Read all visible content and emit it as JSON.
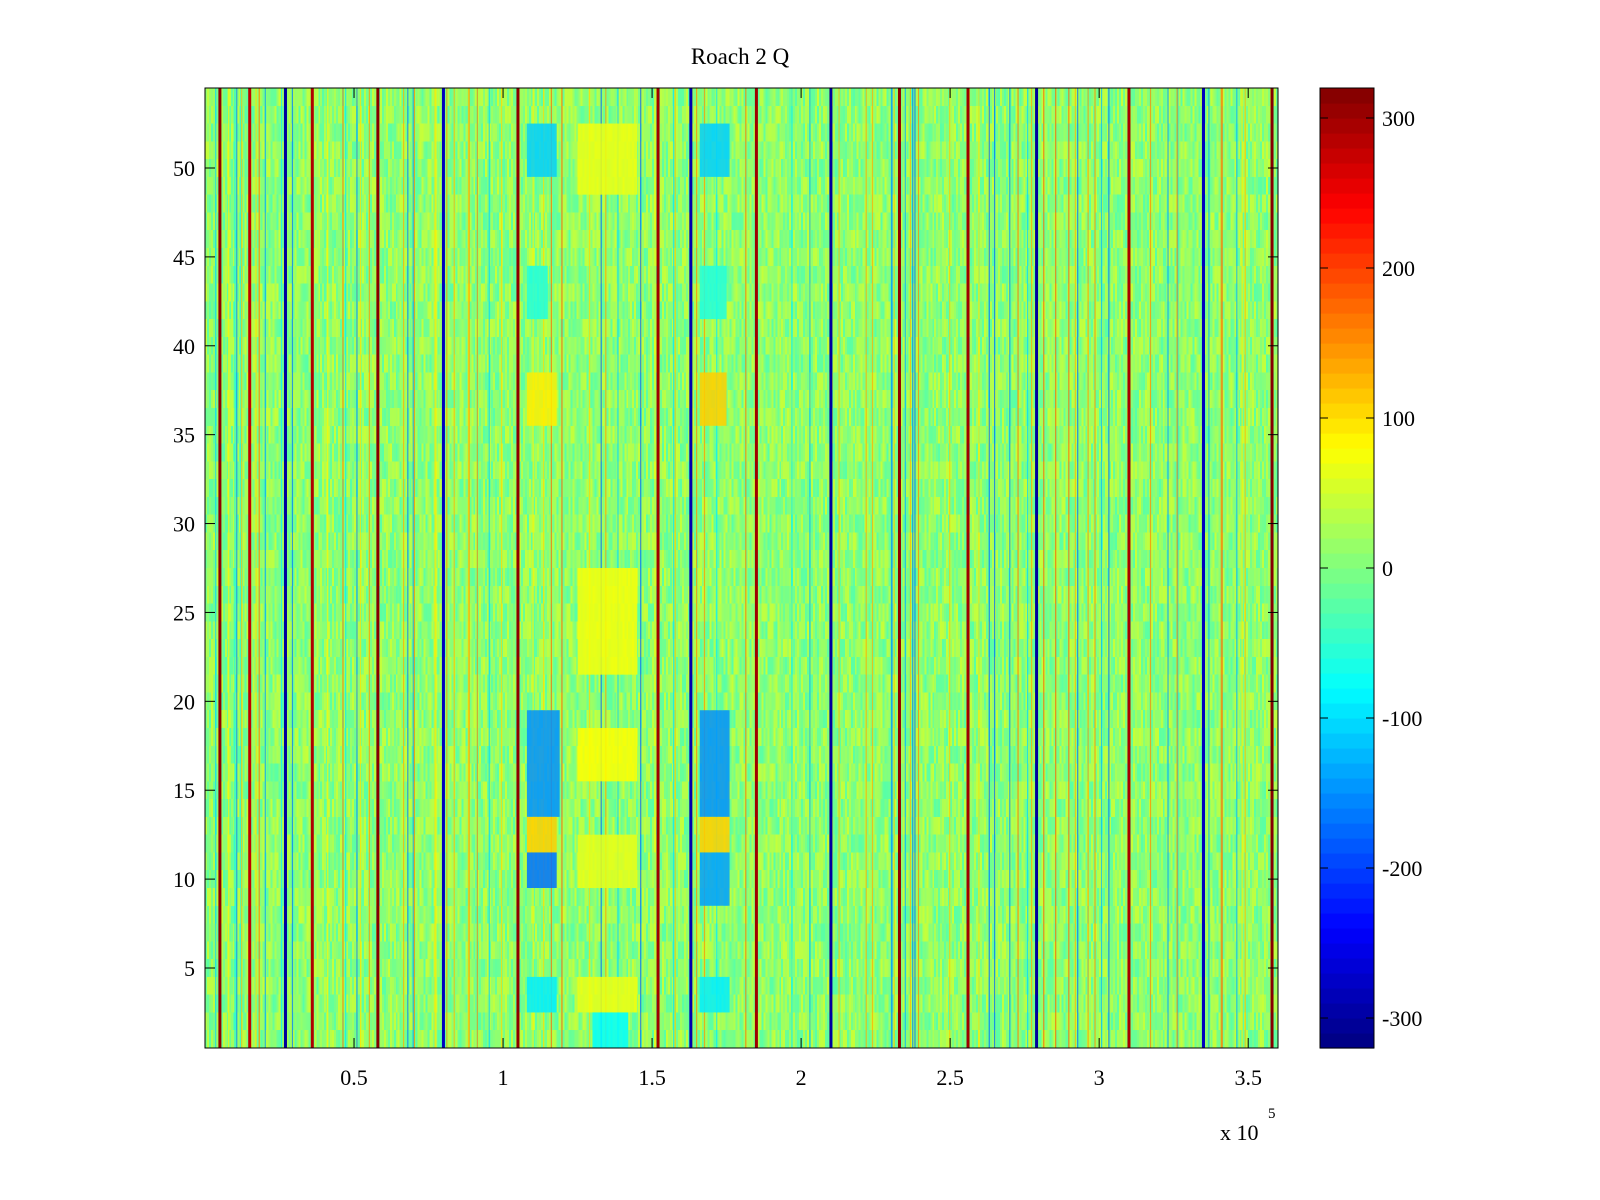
{
  "figure_title": "Roach 2 Q",
  "chart_data": [
    {
      "type": "heatmap",
      "title": "Roach 2 Q",
      "xlabel": "",
      "ylabel": "",
      "x_range": [
        0,
        360000
      ],
      "y_range": [
        0.5,
        54.5
      ],
      "x_multiplier_base": "x 10",
      "x_multiplier_exponent": "5",
      "x_ticks": [
        {
          "value": 50000,
          "label": "0.5"
        },
        {
          "value": 100000,
          "label": "1"
        },
        {
          "value": 150000,
          "label": "1.5"
        },
        {
          "value": 200000,
          "label": "2"
        },
        {
          "value": 250000,
          "label": "2.5"
        },
        {
          "value": 300000,
          "label": "3"
        },
        {
          "value": 350000,
          "label": "3.5"
        }
      ],
      "y_ticks": [
        {
          "value": 5,
          "label": "5"
        },
        {
          "value": 10,
          "label": "10"
        },
        {
          "value": 15,
          "label": "15"
        },
        {
          "value": 20,
          "label": "20"
        },
        {
          "value": 25,
          "label": "25"
        },
        {
          "value": 30,
          "label": "30"
        },
        {
          "value": 35,
          "label": "35"
        },
        {
          "value": 40,
          "label": "40"
        },
        {
          "value": 45,
          "label": "45"
        },
        {
          "value": 50,
          "label": "50"
        }
      ],
      "rows": 54,
      "colormap": "jet",
      "background_value": 10,
      "noise_amplitude": 35,
      "color_limits": [
        -320,
        320
      ],
      "colorbar_ticks": [
        {
          "value": 300,
          "label": "300"
        },
        {
          "value": 200,
          "label": "200"
        },
        {
          "value": 100,
          "label": "100"
        },
        {
          "value": 0,
          "label": "0"
        },
        {
          "value": -100,
          "label": "-100"
        },
        {
          "value": -200,
          "label": "-200"
        },
        {
          "value": -300,
          "label": "-300"
        }
      ],
      "vertical_spikes": [
        {
          "x": 5000,
          "value": 310
        },
        {
          "x": 15000,
          "value": 280
        },
        {
          "x": 27000,
          "value": -300
        },
        {
          "x": 36000,
          "value": 290
        },
        {
          "x": 58000,
          "value": 315
        },
        {
          "x": 80000,
          "value": -280
        },
        {
          "x": 105000,
          "value": 310
        },
        {
          "x": 152000,
          "value": 300
        },
        {
          "x": 163000,
          "value": -290
        },
        {
          "x": 185000,
          "value": 300
        },
        {
          "x": 210000,
          "value": -300
        },
        {
          "x": 233000,
          "value": 310
        },
        {
          "x": 256000,
          "value": 300
        },
        {
          "x": 279000,
          "value": -300
        },
        {
          "x": 310000,
          "value": 295
        },
        {
          "x": 335000,
          "value": -280
        },
        {
          "x": 358000,
          "value": 315
        }
      ],
      "feature_blocks": [
        {
          "x0": 108000,
          "x1": 118000,
          "y0": 50,
          "y1": 52,
          "value": -110
        },
        {
          "x0": 108000,
          "x1": 115000,
          "y0": 42,
          "y1": 44,
          "value": -60
        },
        {
          "x0": 108000,
          "x1": 118000,
          "y0": 36,
          "y1": 38,
          "value": 90
        },
        {
          "x0": 108000,
          "x1": 119000,
          "y0": 14,
          "y1": 19,
          "value": -150
        },
        {
          "x0": 108000,
          "x1": 118000,
          "y0": 12,
          "y1": 13,
          "value": 110
        },
        {
          "x0": 108000,
          "x1": 118000,
          "y0": 10,
          "y1": 11,
          "value": -170
        },
        {
          "x0": 108000,
          "x1": 118000,
          "y0": 3,
          "y1": 4,
          "value": -90
        },
        {
          "x0": 125000,
          "x1": 145000,
          "y0": 49,
          "y1": 52,
          "value": 70
        },
        {
          "x0": 125000,
          "x1": 145000,
          "y0": 22,
          "y1": 27,
          "value": 75
        },
        {
          "x0": 125000,
          "x1": 145000,
          "y0": 16,
          "y1": 18,
          "value": 80
        },
        {
          "x0": 125000,
          "x1": 145000,
          "y0": 10,
          "y1": 12,
          "value": 65
        },
        {
          "x0": 125000,
          "x1": 145000,
          "y0": 3,
          "y1": 4,
          "value": 70
        },
        {
          "x0": 130000,
          "x1": 142000,
          "y0": 1,
          "y1": 2,
          "value": -80
        },
        {
          "x0": 166000,
          "x1": 176000,
          "y0": 50,
          "y1": 52,
          "value": -110
        },
        {
          "x0": 166000,
          "x1": 175000,
          "y0": 42,
          "y1": 44,
          "value": -60
        },
        {
          "x0": 166000,
          "x1": 175000,
          "y0": 36,
          "y1": 38,
          "value": 110
        },
        {
          "x0": 166000,
          "x1": 176000,
          "y0": 14,
          "y1": 19,
          "value": -150
        },
        {
          "x0": 166000,
          "x1": 176000,
          "y0": 12,
          "y1": 13,
          "value": 110
        },
        {
          "x0": 166000,
          "x1": 176000,
          "y0": 9,
          "y1": 11,
          "value": -140
        },
        {
          "x0": 166000,
          "x1": 176000,
          "y0": 3,
          "y1": 4,
          "value": -90
        }
      ]
    }
  ]
}
